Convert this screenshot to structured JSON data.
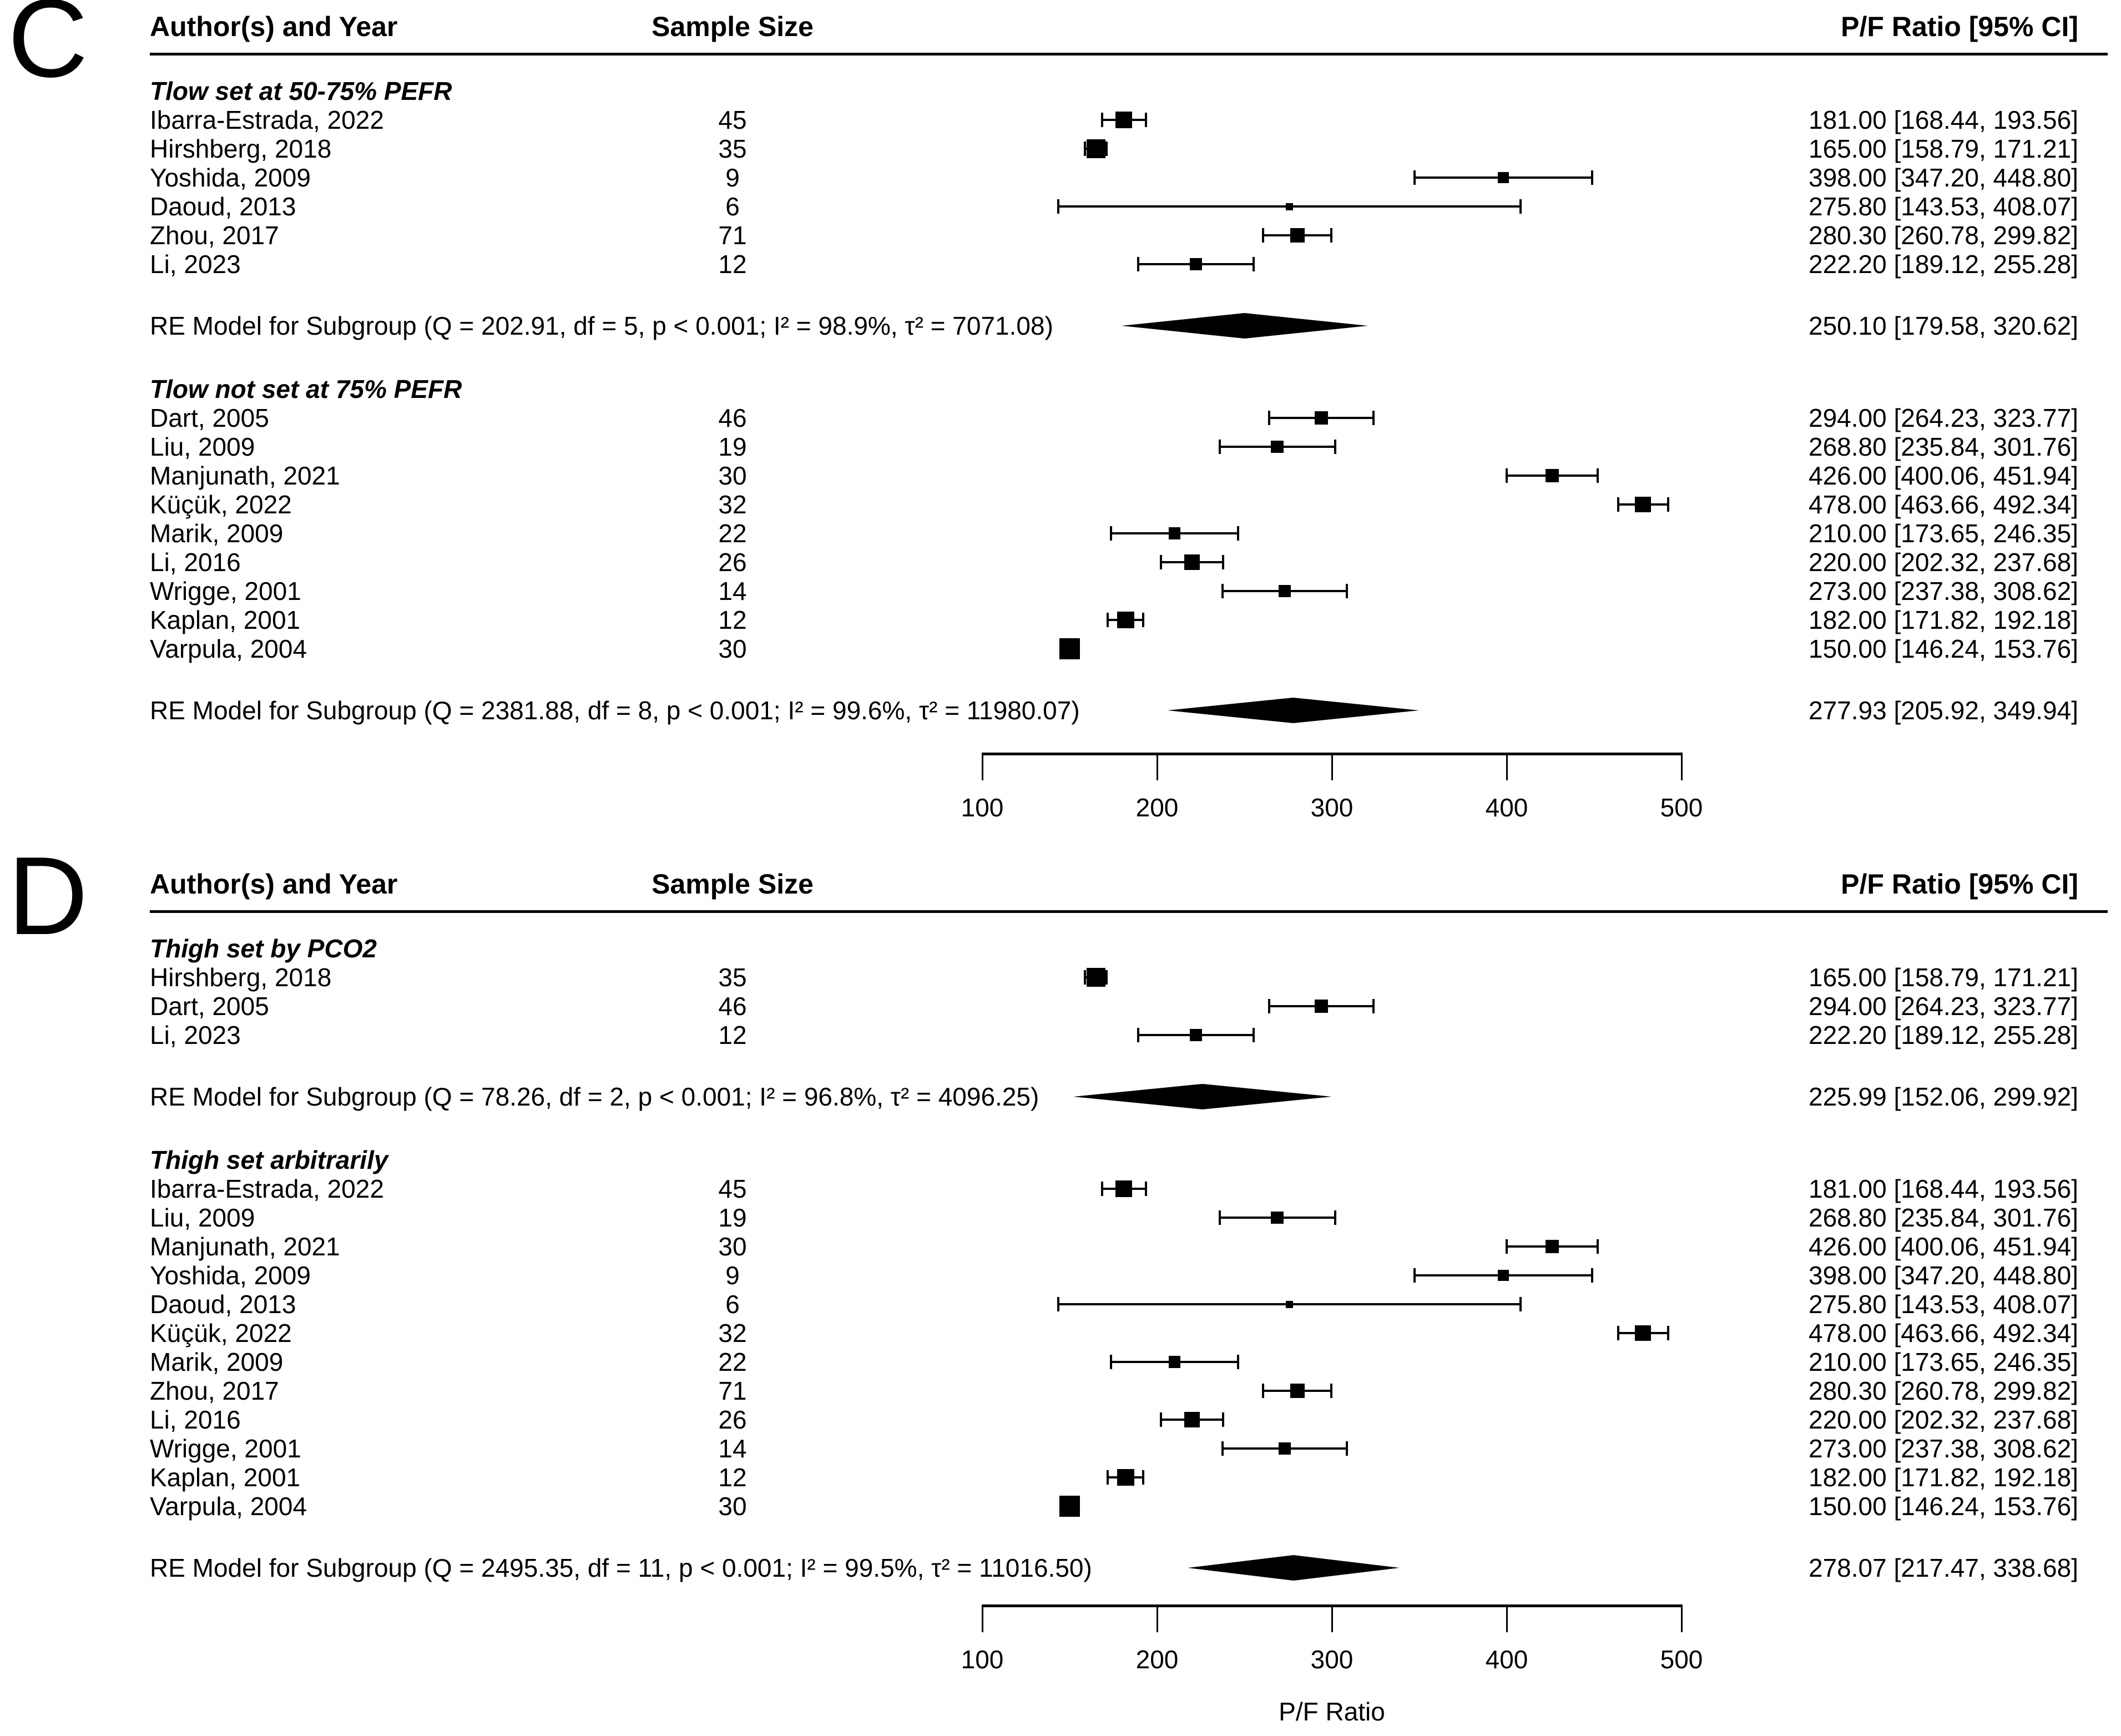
{
  "chart_data": {
    "type": "forest",
    "xlabel": "P/F Ratio",
    "xlim": [
      100,
      500
    ],
    "panels": [
      {
        "letter": "C",
        "columns": {
          "author": "Author(s) and Year",
          "n": "Sample Size",
          "estimate": "P/F Ratio [95% CI]"
        },
        "subgroups": [
          {
            "label": "Tlow set at 50-75% PEFR",
            "studies": [
              {
                "author": "Ibarra-Estrada, 2022",
                "n": "45",
                "mean": 181.0,
                "lo": 168.44,
                "hi": 193.56,
                "est": "181.00 [168.44, 193.56]"
              },
              {
                "author": "Hirshberg, 2018",
                "n": "35",
                "mean": 165.0,
                "lo": 158.79,
                "hi": 171.21,
                "est": "165.00 [158.79, 171.21]"
              },
              {
                "author": "Yoshida, 2009",
                "n": "9",
                "mean": 398.0,
                "lo": 347.2,
                "hi": 448.8,
                "est": "398.00 [347.20, 448.80]"
              },
              {
                "author": "Daoud, 2013",
                "n": "6",
                "mean": 275.8,
                "lo": 143.53,
                "hi": 408.07,
                "est": "275.80 [143.53, 408.07]"
              },
              {
                "author": "Zhou, 2017",
                "n": "71",
                "mean": 280.3,
                "lo": 260.78,
                "hi": 299.82,
                "est": "280.30 [260.78, 299.82]"
              },
              {
                "author": "Li, 2023",
                "n": "12",
                "mean": 222.2,
                "lo": 189.12,
                "hi": 255.28,
                "est": "222.20 [189.12, 255.28]"
              }
            ],
            "re": {
              "label": "RE Model for Subgroup (Q = 202.91, df = 5, p < 0.001; I² = 98.9%, τ² = 7071.08)",
              "mean": 250.1,
              "lo": 179.58,
              "hi": 320.62,
              "est": "250.10 [179.58, 320.62]"
            }
          },
          {
            "label": "Tlow not set at 75% PEFR",
            "studies": [
              {
                "author": "Dart, 2005",
                "n": "46",
                "mean": 294.0,
                "lo": 264.23,
                "hi": 323.77,
                "est": "294.00 [264.23, 323.77]"
              },
              {
                "author": "Liu, 2009",
                "n": "19",
                "mean": 268.8,
                "lo": 235.84,
                "hi": 301.76,
                "est": "268.80 [235.84, 301.76]"
              },
              {
                "author": "Manjunath, 2021",
                "n": "30",
                "mean": 426.0,
                "lo": 400.06,
                "hi": 451.94,
                "est": "426.00 [400.06, 451.94]"
              },
              {
                "author": "Küçük, 2022",
                "n": "32",
                "mean": 478.0,
                "lo": 463.66,
                "hi": 492.34,
                "est": "478.00 [463.66, 492.34]"
              },
              {
                "author": "Marik, 2009",
                "n": "22",
                "mean": 210.0,
                "lo": 173.65,
                "hi": 246.35,
                "est": "210.00 [173.65, 246.35]"
              },
              {
                "author": "Li, 2016",
                "n": "26",
                "mean": 220.0,
                "lo": 202.32,
                "hi": 237.68,
                "est": "220.00 [202.32, 237.68]"
              },
              {
                "author": "Wrigge, 2001",
                "n": "14",
                "mean": 273.0,
                "lo": 237.38,
                "hi": 308.62,
                "est": "273.00 [237.38, 308.62]"
              },
              {
                "author": "Kaplan, 2001",
                "n": "12",
                "mean": 182.0,
                "lo": 171.82,
                "hi": 192.18,
                "est": "182.00 [171.82, 192.18]"
              },
              {
                "author": "Varpula, 2004",
                "n": "30",
                "mean": 150.0,
                "lo": 146.24,
                "hi": 153.76,
                "est": "150.00 [146.24, 153.76]"
              }
            ],
            "re": {
              "label": "RE Model for Subgroup (Q = 2381.88, df = 8, p < 0.001; I² = 99.6%, τ² = 11980.07)",
              "mean": 277.93,
              "lo": 205.92,
              "hi": 349.94,
              "est": "277.93 [205.92, 349.94]"
            }
          }
        ],
        "axis": {
          "ticks": [
            100,
            200,
            300,
            400,
            500
          ],
          "label": ""
        }
      },
      {
        "letter": "D",
        "columns": {
          "author": "Author(s) and Year",
          "n": "Sample Size",
          "estimate": "P/F Ratio [95% CI]"
        },
        "subgroups": [
          {
            "label": "Thigh set by PCO2",
            "studies": [
              {
                "author": "Hirshberg, 2018",
                "n": "35",
                "mean": 165.0,
                "lo": 158.79,
                "hi": 171.21,
                "est": "165.00 [158.79, 171.21]"
              },
              {
                "author": "Dart, 2005",
                "n": "46",
                "mean": 294.0,
                "lo": 264.23,
                "hi": 323.77,
                "est": "294.00 [264.23, 323.77]"
              },
              {
                "author": "Li, 2023",
                "n": "12",
                "mean": 222.2,
                "lo": 189.12,
                "hi": 255.28,
                "est": "222.20 [189.12, 255.28]"
              }
            ],
            "re": {
              "label": "RE Model for Subgroup (Q = 78.26, df = 2, p < 0.001; I² = 96.8%, τ² = 4096.25)",
              "mean": 225.99,
              "lo": 152.06,
              "hi": 299.92,
              "est": "225.99 [152.06, 299.92]"
            }
          },
          {
            "label": "Thigh set arbitrarily",
            "studies": [
              {
                "author": "Ibarra-Estrada, 2022",
                "n": "45",
                "mean": 181.0,
                "lo": 168.44,
                "hi": 193.56,
                "est": "181.00 [168.44, 193.56]"
              },
              {
                "author": "Liu, 2009",
                "n": "19",
                "mean": 268.8,
                "lo": 235.84,
                "hi": 301.76,
                "est": "268.80 [235.84, 301.76]"
              },
              {
                "author": "Manjunath, 2021",
                "n": "30",
                "mean": 426.0,
                "lo": 400.06,
                "hi": 451.94,
                "est": "426.00 [400.06, 451.94]"
              },
              {
                "author": "Yoshida, 2009",
                "n": "9",
                "mean": 398.0,
                "lo": 347.2,
                "hi": 448.8,
                "est": "398.00 [347.20, 448.80]"
              },
              {
                "author": "Daoud, 2013",
                "n": "6",
                "mean": 275.8,
                "lo": 143.53,
                "hi": 408.07,
                "est": "275.80 [143.53, 408.07]"
              },
              {
                "author": "Küçük, 2022",
                "n": "32",
                "mean": 478.0,
                "lo": 463.66,
                "hi": 492.34,
                "est": "478.00 [463.66, 492.34]"
              },
              {
                "author": "Marik, 2009",
                "n": "22",
                "mean": 210.0,
                "lo": 173.65,
                "hi": 246.35,
                "est": "210.00 [173.65, 246.35]"
              },
              {
                "author": "Zhou, 2017",
                "n": "71",
                "mean": 280.3,
                "lo": 260.78,
                "hi": 299.82,
                "est": "280.30 [260.78, 299.82]"
              },
              {
                "author": "Li, 2016",
                "n": "26",
                "mean": 220.0,
                "lo": 202.32,
                "hi": 237.68,
                "est": "220.00 [202.32, 237.68]"
              },
              {
                "author": "Wrigge, 2001",
                "n": "14",
                "mean": 273.0,
                "lo": 237.38,
                "hi": 308.62,
                "est": "273.00 [237.38, 308.62]"
              },
              {
                "author": "Kaplan, 2001",
                "n": "12",
                "mean": 182.0,
                "lo": 171.82,
                "hi": 192.18,
                "est": "182.00 [171.82, 192.18]"
              },
              {
                "author": "Varpula, 2004",
                "n": "30",
                "mean": 150.0,
                "lo": 146.24,
                "hi": 153.76,
                "est": "150.00 [146.24, 153.76]"
              }
            ],
            "re": {
              "label": "RE Model for Subgroup (Q = 2495.35, df = 11, p < 0.001; I² = 99.5%, τ² = 11016.50)",
              "mean": 278.07,
              "lo": 217.47,
              "hi": 338.68,
              "est": "278.07 [217.47, 338.68]"
            }
          }
        ],
        "axis": {
          "ticks": [
            100,
            200,
            300,
            400,
            500
          ],
          "label": "P/F Ratio"
        }
      }
    ]
  }
}
